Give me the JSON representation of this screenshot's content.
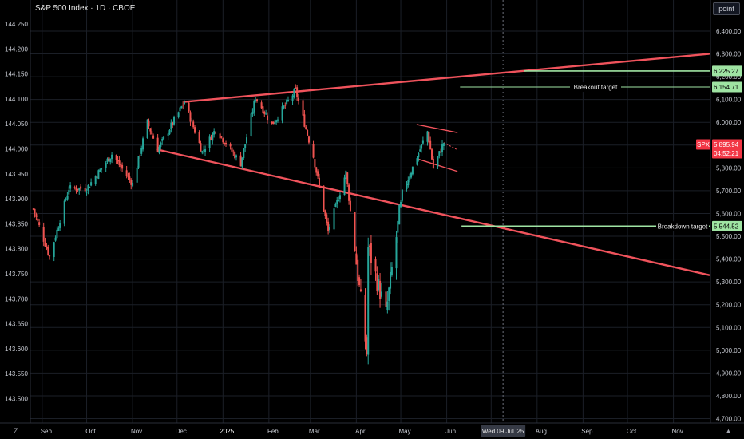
{
  "header": {
    "title": "S&P 500 Index · 1D · CBOE"
  },
  "unit_button": "point",
  "corner": {
    "left_icon": "Z",
    "right_icon": "▲"
  },
  "colors": {
    "background": "#000000",
    "grid": "#1b1f27",
    "up": "#26a69a",
    "down": "#ef5350",
    "trendline": "#f0535c",
    "target": "#9fe4a3",
    "price_tag": "#f23645"
  },
  "chart_data": {
    "type": "candlestick",
    "title": "S&P 500 Index · 1D · CBOE",
    "symbol": "SPX",
    "left_axis": {
      "ticks": [
        "144.250",
        "144.200",
        "144.150",
        "144.100",
        "144.050",
        "144.000",
        "143.950",
        "143.900",
        "143.850",
        "143.800",
        "143.750",
        "143.700",
        "143.650",
        "143.600",
        "143.550",
        "143.500"
      ]
    },
    "right_axis": {
      "ticks": [
        "6,400.00",
        "6,300.00",
        "6,200.00",
        "6,100.00",
        "6,000.00",
        "5,900.00",
        "5,800.00",
        "5,700.00",
        "5,600.00",
        "5,500.00",
        "5,400.00",
        "5,300.00",
        "5,200.00",
        "5,100.00",
        "5,000.00",
        "4,900.00",
        "4,800.00",
        "4,700.00"
      ]
    },
    "time_axis": [
      "Sep",
      "Oct",
      "Nov",
      "Dec",
      "2025",
      "Feb",
      "Mar",
      "Apr",
      "May",
      "Jun",
      "Aug",
      "Sep",
      "Oct",
      "Nov"
    ],
    "crosshair_date": "Wed 09 Jul '25",
    "last_price": {
      "label": "SPX",
      "value": "5,895.94",
      "countdown": "04:52:21"
    },
    "targets": [
      {
        "label": "",
        "value": "6,225.27"
      },
      {
        "label": "Breakout target",
        "value": "6,154.71"
      },
      {
        "label": "Breakdown target",
        "value": "5,544.52"
      }
    ],
    "close_path": [
      [
        "Aug 26 2024",
        5620
      ],
      [
        "Sep 6 2024",
        5410
      ],
      [
        "Sep 19 2024",
        5710
      ],
      [
        "Oct 1 2024",
        5710
      ],
      [
        "Oct 18 2024",
        5860
      ],
      [
        "Nov 1 2024",
        5730
      ],
      [
        "Nov 11 2024",
        6000
      ],
      [
        "Nov 18 2024",
        5880
      ],
      [
        "Dec 6 2024",
        6090
      ],
      [
        "Dec 18 2024",
        5870
      ],
      [
        "Dec 27 2024",
        5970
      ],
      [
        "Jan 13 2025",
        5820
      ],
      [
        "Jan 23 2025",
        6110
      ],
      [
        "Feb 3 2025",
        5990
      ],
      [
        "Feb 19 2025",
        6140
      ],
      [
        "Mar 3 2025",
        5850
      ],
      [
        "Mar 13 2025",
        5520
      ],
      [
        "Mar 25 2025",
        5780
      ],
      [
        "Apr 8 2025",
        4990
      ],
      [
        "Apr 9 2025",
        5450
      ],
      [
        "Apr 21 2025",
        5160
      ],
      [
        "May 2 2025",
        5690
      ],
      [
        "May 12 2025",
        5850
      ],
      [
        "May 19 2025",
        5960
      ],
      [
        "May 23 2025",
        5800
      ],
      [
        "May 30 2025",
        5911
      ]
    ],
    "trendlines": [
      {
        "from": [
          "Dec 6 2024",
          6090
        ],
        "to": [
          "Nov 25 2025",
          6300
        ]
      },
      {
        "from": [
          "Nov 18 2024",
          5880
        ],
        "to": [
          "Nov 25 2025",
          5330
        ]
      },
      {
        "from": [
          "May 12 2025",
          5990
        ],
        "to": [
          "Jun 8 2025",
          5955
        ]
      },
      {
        "from": [
          "May 12 2025",
          5840
        ],
        "to": [
          "Jun 8 2025",
          5785
        ]
      }
    ],
    "grid": true
  }
}
